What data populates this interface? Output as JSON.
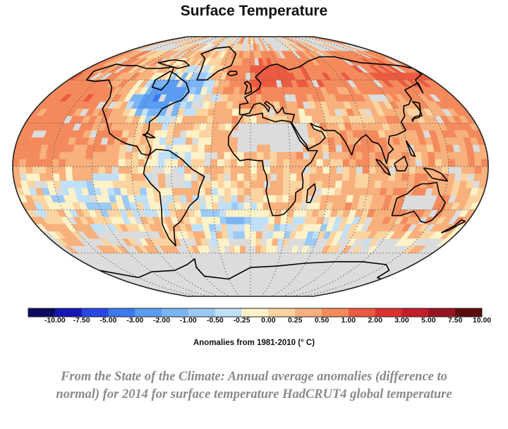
{
  "figure": {
    "title": "Surface Temperature",
    "caption_line1": "From the State of the Climate: Annual average anomalies (difference to",
    "caption_line2": "normal) for 2014 for surface temperature HadCRUT4 global temperature"
  },
  "colorbar": {
    "title": "Anomalies from 1981-2010 (° C)",
    "tick_labels": [
      "-10.00",
      "-7.50",
      "-5.00",
      "-3.00",
      "-2.00",
      "-1.00",
      "-0.50",
      "-0.25",
      "0.00",
      "0.25",
      "0.50",
      "1.00",
      "2.00",
      "3.00",
      "5.00",
      "7.50",
      "10.00"
    ],
    "colors": [
      "#0a0a5e",
      "#1414b4",
      "#2846e6",
      "#3c78ee",
      "#5a9cf2",
      "#7ab4f4",
      "#9ccaf6",
      "#c0e0f8",
      "#fff2c8",
      "#fcd4a0",
      "#f8b07c",
      "#f48a5c",
      "#ec5a40",
      "#dc3030",
      "#c41c28",
      "#961420",
      "#5a0a0a"
    ]
  },
  "map": {
    "projection": "Robinson",
    "missing_color": "#dcdcdc",
    "land_outline_color": "#000000",
    "graticule_color": "#555555"
  }
}
